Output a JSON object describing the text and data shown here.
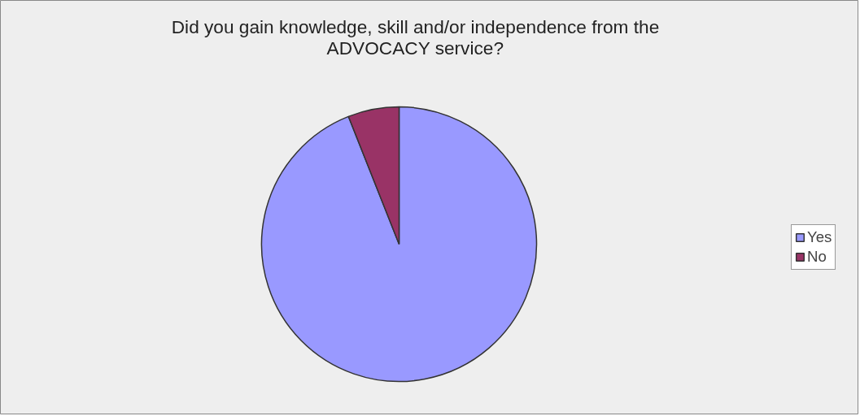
{
  "chart_data": {
    "type": "pie",
    "title": "Did you gain knowledge, skill and/or independence from the ADVOCACY service?",
    "categories": [
      "Yes",
      "No"
    ],
    "values": [
      94,
      6
    ],
    "colors": [
      "#9999ff",
      "#993366"
    ],
    "legend": "right"
  }
}
